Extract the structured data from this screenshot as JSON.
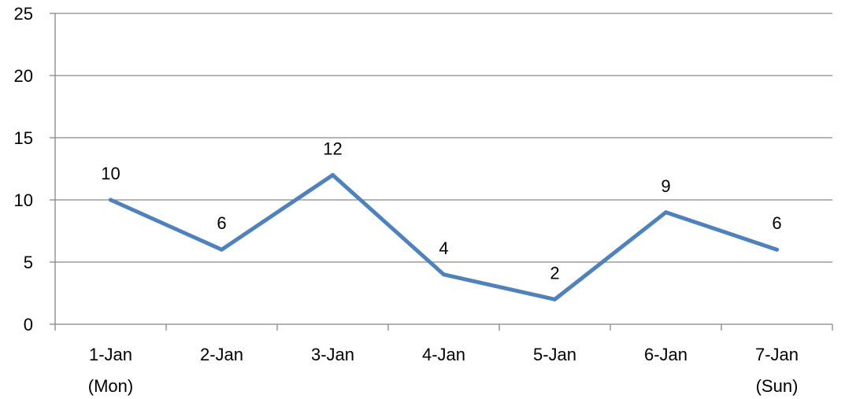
{
  "chart_data": {
    "type": "line",
    "title": "",
    "xlabel": "",
    "ylabel": "",
    "categories": [
      [
        "1-Jan",
        "(Mon)"
      ],
      [
        "2-Jan"
      ],
      [
        "3-Jan"
      ],
      [
        "4-Jan"
      ],
      [
        "5-Jan"
      ],
      [
        "6-Jan"
      ],
      [
        "7-Jan",
        "(Sun)"
      ]
    ],
    "series": [
      {
        "values": [
          10,
          6,
          12,
          4,
          2,
          9,
          6
        ],
        "color": "#4F81BD"
      }
    ],
    "data_labels": true,
    "ylim": [
      0,
      25
    ],
    "yticks": [
      0,
      5,
      10,
      15,
      20,
      25
    ],
    "grid": true,
    "legend": "none"
  }
}
